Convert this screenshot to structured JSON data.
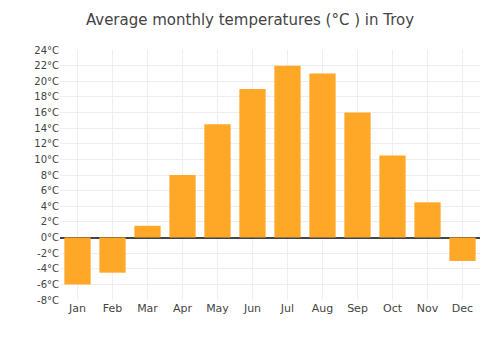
{
  "chart_data": {
    "type": "bar",
    "title": "Average monthly temperatures (°C ) in Troy",
    "categories": [
      "Jan",
      "Feb",
      "Mar",
      "Apr",
      "May",
      "Jun",
      "Jul",
      "Aug",
      "Sep",
      "Oct",
      "Nov",
      "Dec"
    ],
    "values": [
      -6.0,
      -4.5,
      1.5,
      8.0,
      14.5,
      19.0,
      22.0,
      21.0,
      16.0,
      10.5,
      4.5,
      -3.0
    ],
    "color": "#FFA726",
    "ylim": [
      -8,
      24
    ],
    "yticks": [
      {
        "value": -8,
        "label": "-8°C"
      },
      {
        "value": -6,
        "label": "-6°C"
      },
      {
        "value": -4,
        "label": "-4°C"
      },
      {
        "value": -2,
        "label": "-2°C"
      },
      {
        "value": 0,
        "label": "0°C"
      },
      {
        "value": 2,
        "label": "2°C"
      },
      {
        "value": 4,
        "label": "4°C"
      },
      {
        "value": 6,
        "label": "6°C"
      },
      {
        "value": 8,
        "label": "8°C"
      },
      {
        "value": 10,
        "label": "10°C"
      },
      {
        "value": 12,
        "label": "12°C"
      },
      {
        "value": 14,
        "label": "14°C"
      },
      {
        "value": 16,
        "label": "16°C"
      },
      {
        "value": 18,
        "label": "18°C"
      },
      {
        "value": 20,
        "label": "20°C"
      },
      {
        "value": 22,
        "label": "22°C"
      },
      {
        "value": 24,
        "label": "24°C"
      }
    ],
    "grid": true
  }
}
